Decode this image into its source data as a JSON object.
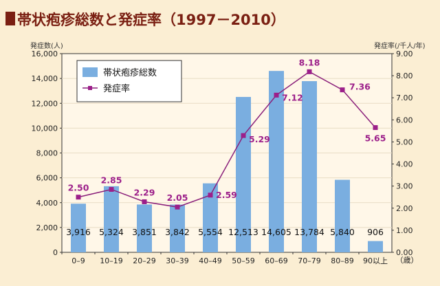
{
  "title": "帯状疱疹総数と発症率（1997－2010）",
  "colors": {
    "title": "#7a1f12",
    "bar": "#7aaee0",
    "line": "#8a1f7a",
    "marker": "#9c1f8a",
    "line_label": "#9c1f8a",
    "grid": "#ffffff",
    "background": "#fbeed3"
  },
  "chart_data": {
    "type": "bar",
    "title": "帯状疱疹総数と発症率（1997－2010）",
    "categories": [
      "0–9",
      "10–19",
      "20–29",
      "30–39",
      "40–49",
      "50–59",
      "60–69",
      "70–79",
      "80–89",
      "90以上"
    ],
    "x_unit": "（歳）",
    "series": [
      {
        "name": "帯状疱疹総数",
        "type": "bar",
        "axis": "left",
        "values": [
          3916,
          5324,
          3851,
          3842,
          5554,
          12513,
          14605,
          13784,
          5840,
          906
        ],
        "labels": [
          "3,916",
          "5,324",
          "3,851",
          "3,842",
          "5,554",
          "12,513",
          "14,605",
          "13,784",
          "5,840",
          "906"
        ]
      },
      {
        "name": "発症率",
        "type": "line",
        "axis": "right",
        "values": [
          2.5,
          2.85,
          2.29,
          2.05,
          2.59,
          5.29,
          7.12,
          8.18,
          7.36,
          5.65
        ],
        "labels": [
          "2.50",
          "2.85",
          "2.29",
          "2.05",
          "2.59",
          "5.29",
          "7.12",
          "8.18",
          "7.36",
          "5.65"
        ]
      }
    ],
    "ylabel_left": "発症数(人)",
    "ylabel_right": "発症率(/千人/年)",
    "ylim_left": [
      0,
      16000
    ],
    "ylim_right": [
      0,
      9
    ],
    "yticks_left": [
      "0",
      "2,000",
      "4,000",
      "6,000",
      "8,000",
      "10,000",
      "12,000",
      "14,000",
      "16,000"
    ],
    "yticks_right": [
      "0.00",
      "1.00",
      "2.00",
      "3.00",
      "4.00",
      "5.00",
      "6.00",
      "7.00",
      "8.00",
      "9.00"
    ],
    "grid": true,
    "legend_position": "top-left"
  }
}
